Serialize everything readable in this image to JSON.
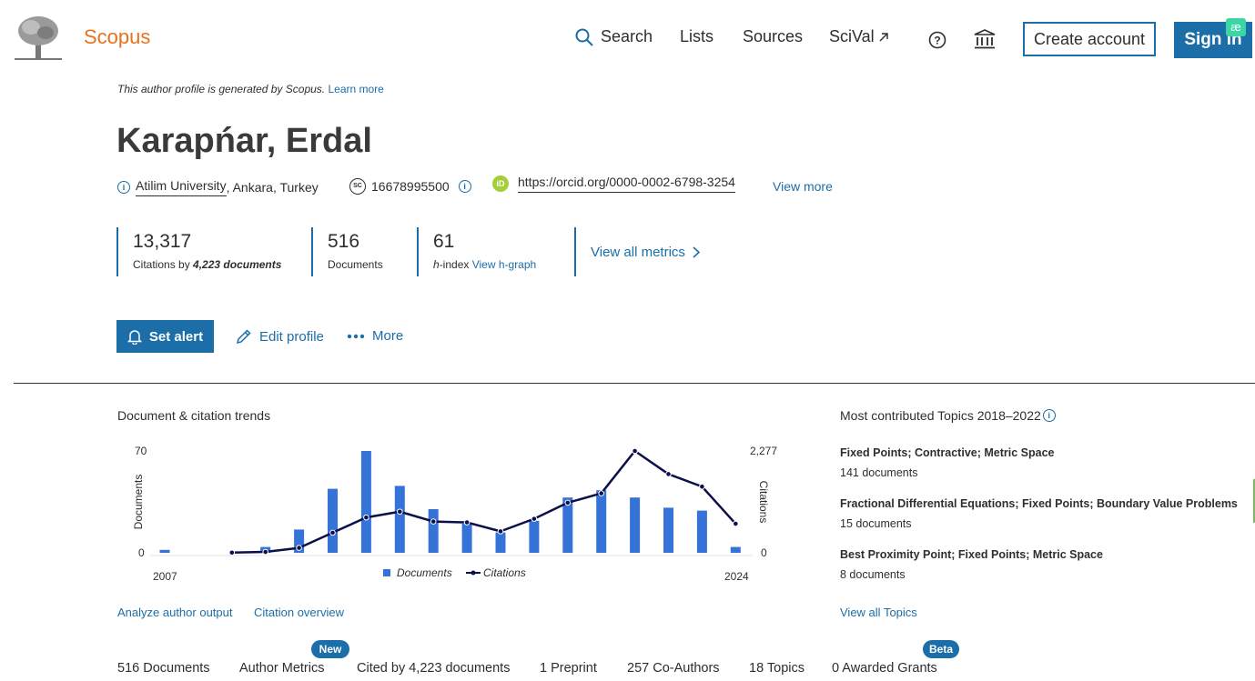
{
  "header": {
    "brand": "Scopus",
    "nav": {
      "search": "Search",
      "lists": "Lists",
      "sources": "Sources",
      "scival": "SciVal"
    },
    "create_account": "Create account",
    "sign_in": "Sign in",
    "badge": "æ"
  },
  "profile": {
    "notice": "This author profile is generated by Scopus.",
    "notice_link": "Learn more",
    "name": "Karapńar, Erdal",
    "affiliation_link": "Atilim University",
    "affiliation_rest": ", Ankara, Turkey",
    "scopus_id": "16678995500",
    "orcid_url": "https://orcid.org/0000-0002-6798-3254",
    "view_more": "View more"
  },
  "metrics": {
    "citations": "13,317",
    "citations_label": "Citations by",
    "citations_docs": "4,223 documents",
    "documents": "516",
    "documents_label": "Documents",
    "hindex": "61",
    "hindex_h": "h",
    "hindex_label": "-index",
    "view_hgraph": "View h-graph",
    "view_all": "View all metrics"
  },
  "actions": {
    "set_alert": "Set alert",
    "edit_profile": "Edit profile",
    "more": "More"
  },
  "trends": {
    "title": "Document & citation trends",
    "analyze": "Analyze author output",
    "citation_overview": "Citation overview"
  },
  "topics": {
    "title": "Most contributed Topics 2018–2022",
    "items": [
      {
        "name": "Fixed Points; Contractive; Metric Space",
        "docs": "141 documents"
      },
      {
        "name": "Fractional Differential Equations; Fixed Points; Boundary Value Problems",
        "docs": "15 documents"
      },
      {
        "name": "Best Proximity Point; Fixed Points; Metric Space",
        "docs": "8 documents"
      }
    ],
    "view_all": "View all Topics"
  },
  "tabs": {
    "documents": "516 Documents",
    "author_metrics": "Author Metrics",
    "cited_by": "Cited by 4,223 documents",
    "preprint": "1 Preprint",
    "coauthors": "257 Co-Authors",
    "topics": "18 Topics",
    "grants": "0 Awarded Grants",
    "new_badge": "New",
    "beta_badge": "Beta"
  },
  "colors": {
    "primary": "#1b6ea8",
    "brand": "#e9711c",
    "bar": "#3573d9",
    "line": "#0b0f4a"
  },
  "chart_data": {
    "type": "bar",
    "x": [
      2007,
      2008,
      2009,
      2010,
      2011,
      2012,
      2013,
      2014,
      2015,
      2016,
      2017,
      2018,
      2019,
      2020,
      2021,
      2022,
      2023,
      2024
    ],
    "xtick_labels": [
      "2007",
      "2024"
    ],
    "series": [
      {
        "name": "Documents",
        "type": "bar",
        "axis": "left",
        "values": [
          2,
          null,
          0,
          4,
          16,
          44,
          70,
          46,
          30,
          20,
          14,
          22,
          38,
          43,
          38,
          31,
          29,
          4
        ]
      },
      {
        "name": "Citations",
        "type": "line",
        "axis": "right",
        "values": [
          null,
          null,
          5,
          20,
          110,
          450,
          790,
          920,
          700,
          680,
          480,
          760,
          1120,
          1330,
          2277,
          1760,
          1480,
          650
        ]
      }
    ],
    "ylabel": "Documents",
    "ylabel_right": "Citations",
    "ylim": [
      0,
      70
    ],
    "ylim_right": [
      0,
      2277
    ],
    "ytick_labels": [
      "70",
      "0"
    ],
    "ytick_labels_right": [
      "2,277",
      "0"
    ],
    "legend": "bottom"
  }
}
